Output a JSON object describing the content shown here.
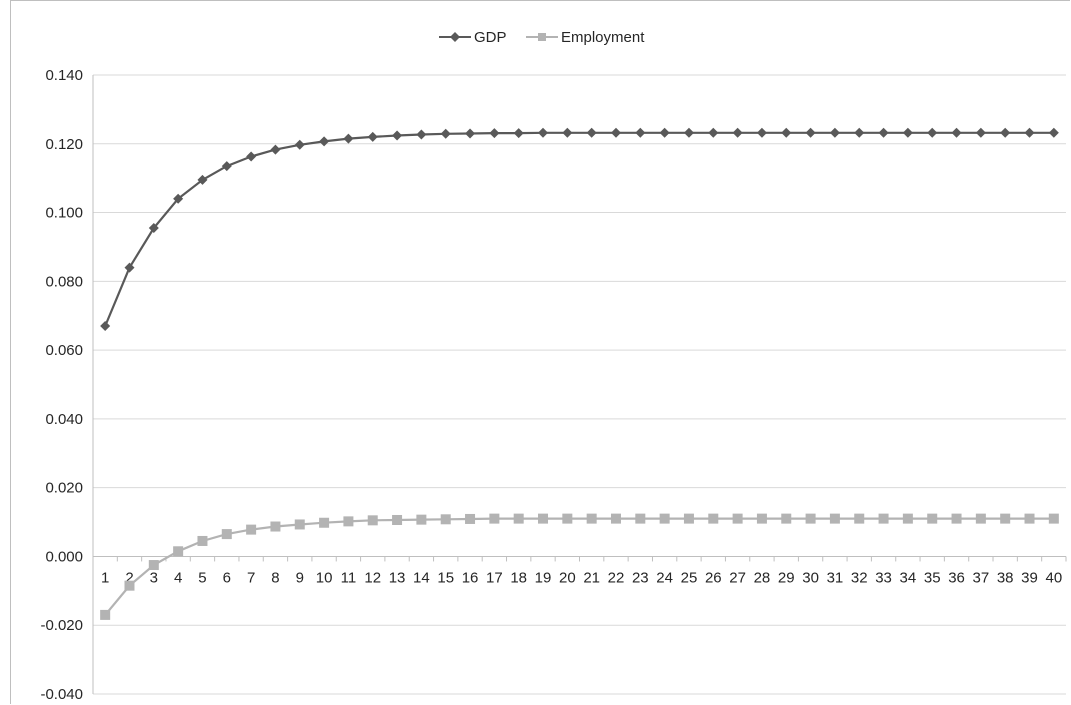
{
  "chart_data": {
    "type": "line",
    "title": "",
    "xlabel": "",
    "ylabel": "",
    "x": [
      "1",
      "2",
      "3",
      "4",
      "5",
      "6",
      "7",
      "8",
      "9",
      "10",
      "11",
      "12",
      "13",
      "14",
      "15",
      "16",
      "17",
      "18",
      "19",
      "20",
      "21",
      "22",
      "23",
      "24",
      "25",
      "26",
      "27",
      "28",
      "29",
      "30",
      "31",
      "32",
      "33",
      "34",
      "35",
      "36",
      "37",
      "38",
      "39",
      "40"
    ],
    "ylim": [
      -0.04,
      0.14
    ],
    "y_ticks": [
      "0.140",
      "0.120",
      "0.100",
      "0.080",
      "0.060",
      "0.040",
      "0.020",
      "0.000",
      "-0.020",
      "-0.040"
    ],
    "y_tick_values": [
      0.14,
      0.12,
      0.1,
      0.08,
      0.06,
      0.04,
      0.02,
      0.0,
      -0.02,
      -0.04
    ],
    "grid": "horizontal",
    "legend_position": "top-center",
    "series": [
      {
        "name": "GDP",
        "color": "#595959",
        "marker": "diamond",
        "values": [
          0.067,
          0.084,
          0.0955,
          0.104,
          0.1095,
          0.1135,
          0.1163,
          0.1183,
          0.1197,
          0.1207,
          0.1215,
          0.122,
          0.1224,
          0.1227,
          0.1229,
          0.123,
          0.1231,
          0.1231,
          0.1232,
          0.1232,
          0.1232,
          0.1232,
          0.1232,
          0.1232,
          0.1232,
          0.1232,
          0.1232,
          0.1232,
          0.1232,
          0.1232,
          0.1232,
          0.1232,
          0.1232,
          0.1232,
          0.1232,
          0.1232,
          0.1232,
          0.1232,
          0.1232,
          0.1232
        ]
      },
      {
        "name": "Employment",
        "color": "#b3b3b3",
        "marker": "square",
        "values": [
          -0.017,
          -0.0085,
          -0.0025,
          0.0015,
          0.0045,
          0.0065,
          0.0078,
          0.0087,
          0.0093,
          0.0098,
          0.0102,
          0.0105,
          0.0106,
          0.0107,
          0.0108,
          0.0109,
          0.011,
          0.011,
          0.011,
          0.011,
          0.011,
          0.011,
          0.011,
          0.011,
          0.011,
          0.011,
          0.011,
          0.011,
          0.011,
          0.011,
          0.011,
          0.011,
          0.011,
          0.011,
          0.011,
          0.011,
          0.011,
          0.011,
          0.011,
          0.011
        ]
      }
    ]
  }
}
